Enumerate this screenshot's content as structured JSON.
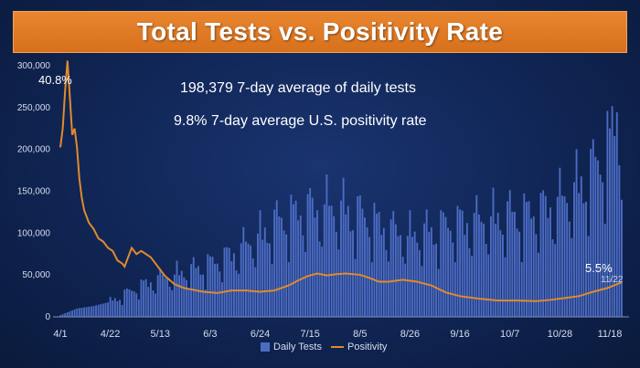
{
  "title": "Total Tests vs. Positivity Rate",
  "stats": {
    "tests_avg": "198,379 7-day average of daily tests",
    "positivity_avg": "9.8% 7-day average U.S. positivity rate"
  },
  "annotations": {
    "peak_label": "40.8%",
    "last_label": "5.5%",
    "last_date": "11/22"
  },
  "legend": {
    "bars": "Daily Tests",
    "line": "Positivity"
  },
  "colors": {
    "bars": "#4c6cc4",
    "line": "#e08a2c",
    "axis_text": "#d6dded"
  },
  "chart_data": {
    "type": "bar",
    "title": "Total Tests vs. Positivity Rate",
    "x_ticks": [
      "4/1",
      "4/22",
      "5/13",
      "6/3",
      "6/24",
      "7/15",
      "8/5",
      "8/26",
      "9/16",
      "10/7",
      "10/28",
      "11/18"
    ],
    "y_ticks": [
      "0",
      "50,000",
      "100,000",
      "150,000",
      "200,000",
      "250,000",
      "300,000"
    ],
    "ylim": [
      0,
      300000
    ],
    "days": 237,
    "series": [
      {
        "name": "Daily Tests",
        "kind": "bar",
        "anchors": [
          [
            0,
            2000
          ],
          [
            7,
            10000
          ],
          [
            14,
            13000
          ],
          [
            21,
            18000
          ],
          [
            28,
            28000
          ],
          [
            35,
            38000
          ],
          [
            42,
            45000
          ],
          [
            49,
            50000
          ],
          [
            56,
            55000
          ],
          [
            63,
            62000
          ],
          [
            70,
            70000
          ],
          [
            77,
            82000
          ],
          [
            84,
            95000
          ],
          [
            91,
            110000
          ],
          [
            98,
            120000
          ],
          [
            105,
            125000
          ],
          [
            112,
            128000
          ],
          [
            119,
            125000
          ],
          [
            126,
            118000
          ],
          [
            133,
            110000
          ],
          [
            140,
            100000
          ],
          [
            147,
            95000
          ],
          [
            154,
            98000
          ],
          [
            161,
            105000
          ],
          [
            168,
            110000
          ],
          [
            175,
            112000
          ],
          [
            182,
            115000
          ],
          [
            189,
            118000
          ],
          [
            196,
            120000
          ],
          [
            203,
            125000
          ],
          [
            210,
            135000
          ],
          [
            217,
            150000
          ],
          [
            224,
            170000
          ],
          [
            231,
            205000
          ],
          [
            234,
            245000
          ],
          [
            236,
            220000
          ]
        ]
      },
      {
        "name": "Positivity",
        "kind": "line",
        "unit": "percent",
        "axis_scale_percent_per_unit": 7500,
        "points": [
          [
            0,
            27.0
          ],
          [
            1,
            30.0
          ],
          [
            2,
            36.0
          ],
          [
            3,
            40.8
          ],
          [
            4,
            35.0
          ],
          [
            5,
            29.0
          ],
          [
            6,
            30.0
          ],
          [
            7,
            27.0
          ],
          [
            8,
            22.0
          ],
          [
            9,
            19.0
          ],
          [
            10,
            17.0
          ],
          [
            12,
            15.0
          ],
          [
            14,
            14.0
          ],
          [
            16,
            12.5
          ],
          [
            18,
            12.0
          ],
          [
            20,
            11.0
          ],
          [
            22,
            10.5
          ],
          [
            24,
            9.0
          ],
          [
            26,
            8.5
          ],
          [
            27,
            8.0
          ],
          [
            28,
            9.0
          ],
          [
            30,
            11.0
          ],
          [
            32,
            10.0
          ],
          [
            34,
            10.5
          ],
          [
            36,
            10.0
          ],
          [
            38,
            9.5
          ],
          [
            40,
            8.5
          ],
          [
            44,
            6.5
          ],
          [
            48,
            5.2
          ],
          [
            52,
            4.6
          ],
          [
            56,
            4.3
          ],
          [
            60,
            4.0
          ],
          [
            66,
            3.8
          ],
          [
            72,
            4.2
          ],
          [
            78,
            4.2
          ],
          [
            84,
            4.0
          ],
          [
            90,
            4.2
          ],
          [
            96,
            5.0
          ],
          [
            100,
            5.8
          ],
          [
            104,
            6.5
          ],
          [
            108,
            6.9
          ],
          [
            112,
            6.6
          ],
          [
            116,
            6.8
          ],
          [
            120,
            6.9
          ],
          [
            126,
            6.7
          ],
          [
            130,
            6.2
          ],
          [
            134,
            5.6
          ],
          [
            138,
            5.6
          ],
          [
            144,
            5.9
          ],
          [
            150,
            5.6
          ],
          [
            156,
            5.0
          ],
          [
            162,
            3.9
          ],
          [
            168,
            3.3
          ],
          [
            176,
            2.9
          ],
          [
            184,
            2.6
          ],
          [
            192,
            2.6
          ],
          [
            200,
            2.5
          ],
          [
            206,
            2.7
          ],
          [
            212,
            3.0
          ],
          [
            218,
            3.3
          ],
          [
            224,
            4.0
          ],
          [
            230,
            4.6
          ],
          [
            236,
            5.5
          ]
        ]
      }
    ]
  }
}
